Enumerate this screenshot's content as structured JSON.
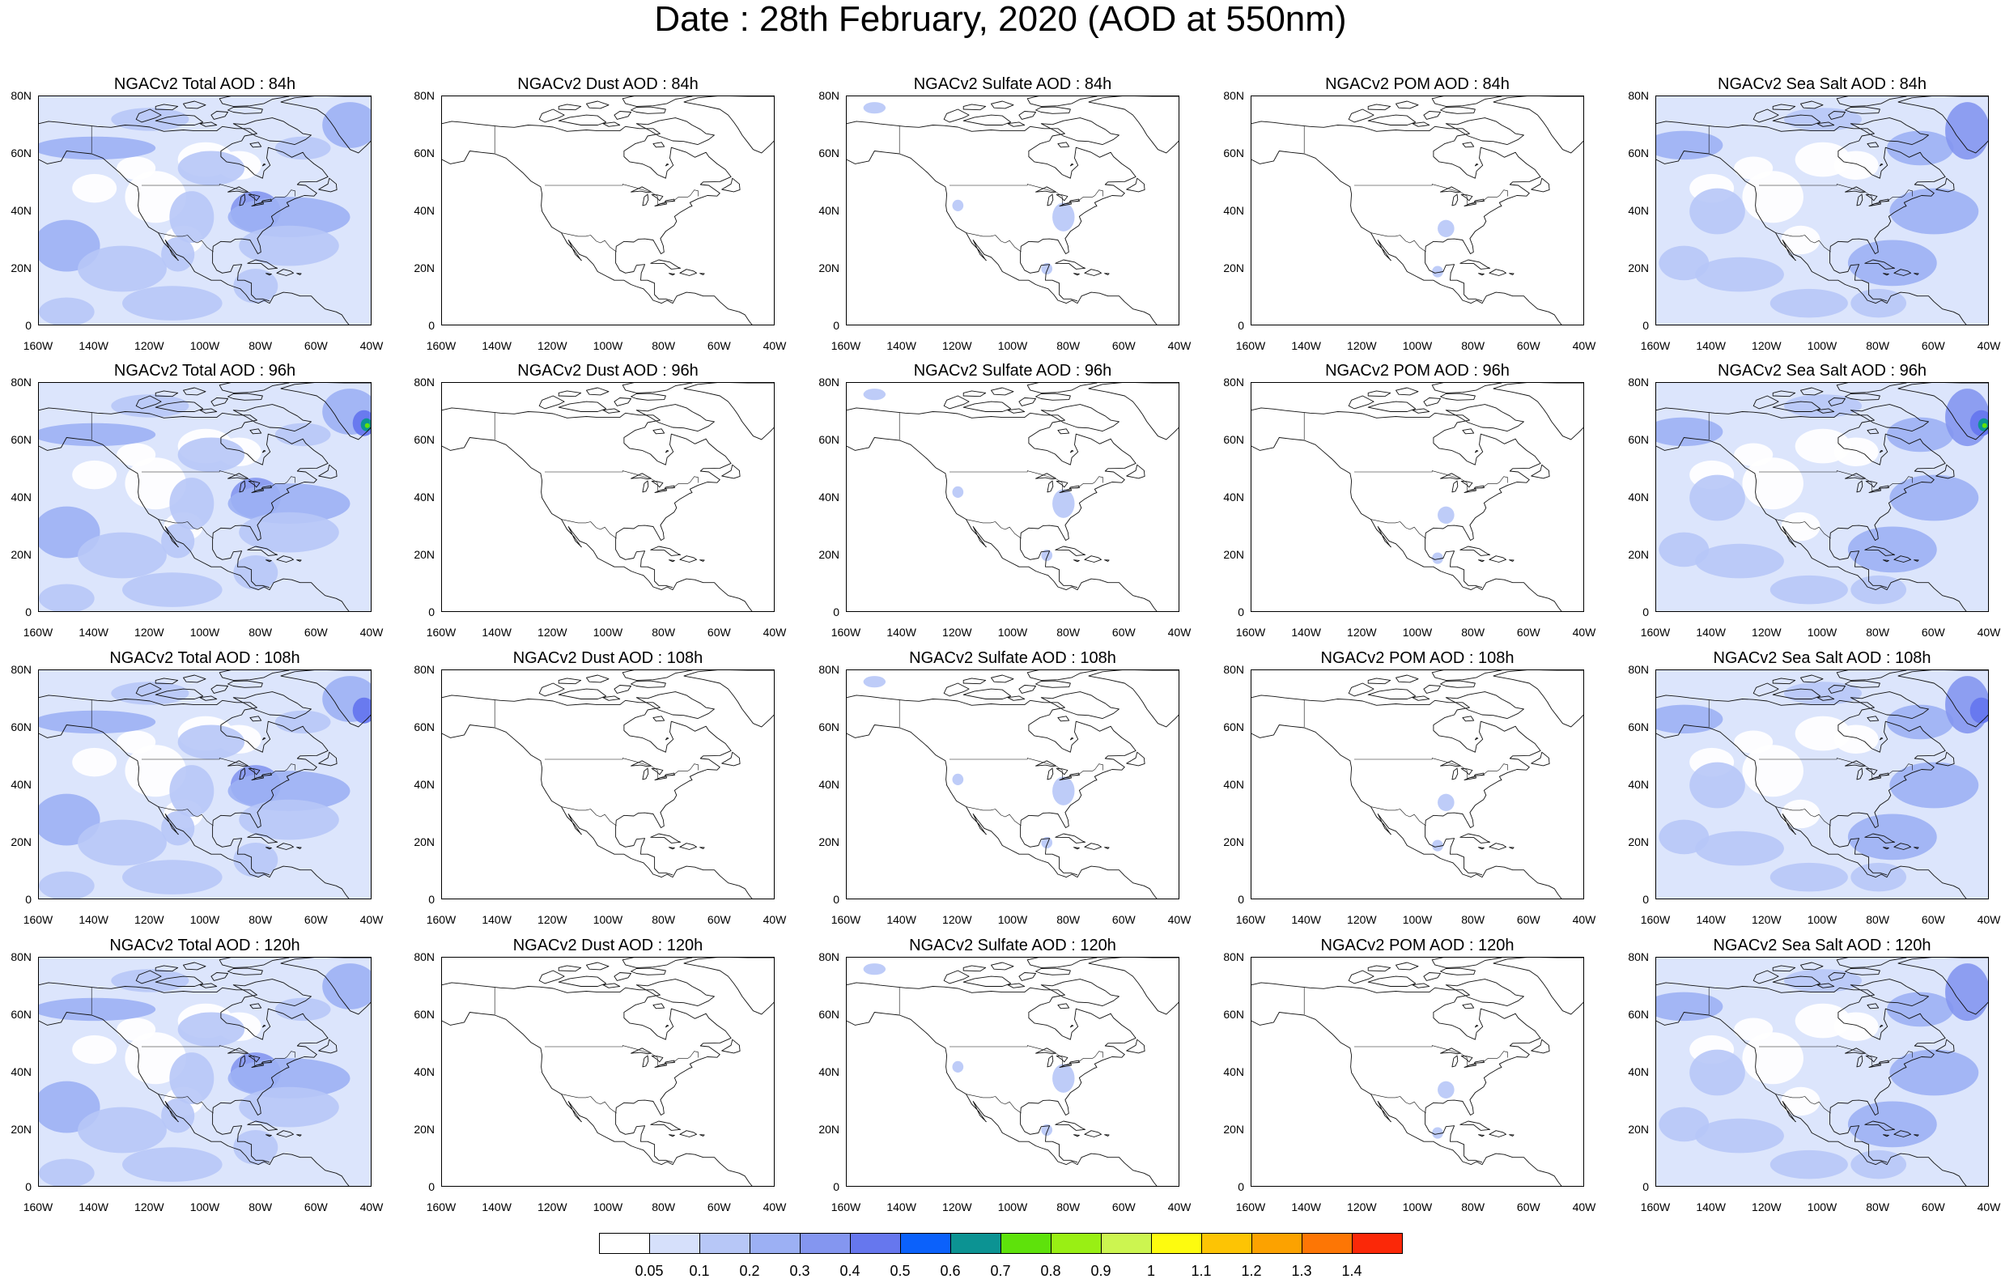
{
  "title": "Date : 28th February, 2020 (AOD at 550nm)",
  "lat_ticks": [
    "80N",
    "60N",
    "40N",
    "20N",
    "0"
  ],
  "lon_ticks": [
    "160W",
    "140W",
    "120W",
    "100W",
    "80W",
    "60W",
    "40W"
  ],
  "map_extent": {
    "lon": [
      -160,
      -40
    ],
    "lat": [
      0,
      80
    ]
  },
  "panels": [
    [
      {
        "title": "NGACv2 Total AOD : 84h",
        "species": "total",
        "level": 0.22
      },
      {
        "title": "NGACv2 Dust AOD : 84h",
        "species": "dust",
        "level": 0.0
      },
      {
        "title": "NGACv2 Sulfate AOD : 84h",
        "species": "sulfate",
        "level": 0.04
      },
      {
        "title": "NGACv2 POM AOD : 84h",
        "species": "pom",
        "level": 0.03
      },
      {
        "title": "NGACv2 Sea Salt AOD : 84h",
        "species": "seasalt",
        "level": 0.18
      }
    ],
    [
      {
        "title": "NGACv2 Total AOD : 96h",
        "species": "total",
        "level": 0.26
      },
      {
        "title": "NGACv2 Dust AOD : 96h",
        "species": "dust",
        "level": 0.0
      },
      {
        "title": "NGACv2 Sulfate AOD : 96h",
        "species": "sulfate",
        "level": 0.05
      },
      {
        "title": "NGACv2 POM AOD : 96h",
        "species": "pom",
        "level": 0.02
      },
      {
        "title": "NGACv2 Sea Salt AOD : 96h",
        "species": "seasalt",
        "level": 0.2
      }
    ],
    [
      {
        "title": "NGACv2 Total AOD : 108h",
        "species": "total",
        "level": 0.26
      },
      {
        "title": "NGACv2 Dust AOD : 108h",
        "species": "dust",
        "level": 0.0
      },
      {
        "title": "NGACv2 Sulfate AOD : 108h",
        "species": "sulfate",
        "level": 0.06
      },
      {
        "title": "NGACv2 POM AOD : 108h",
        "species": "pom",
        "level": 0.03
      },
      {
        "title": "NGACv2 Sea Salt AOD : 108h",
        "species": "seasalt",
        "level": 0.22
      }
    ],
    [
      {
        "title": "NGACv2 Total AOD : 120h",
        "species": "total",
        "level": 0.24
      },
      {
        "title": "NGACv2 Dust AOD : 120h",
        "species": "dust",
        "level": 0.0
      },
      {
        "title": "NGACv2 Sulfate AOD : 120h",
        "species": "sulfate",
        "level": 0.06
      },
      {
        "title": "NGACv2 POM AOD : 120h",
        "species": "pom",
        "level": 0.03
      },
      {
        "title": "NGACv2 Sea Salt  AOD : 120h",
        "species": "seasalt",
        "level": 0.2
      }
    ]
  ],
  "colorbar": {
    "labels": [
      "0.05",
      "0.1",
      "0.2",
      "0.3",
      "0.4",
      "0.5",
      "0.6",
      "0.7",
      "0.8",
      "0.9",
      "1",
      "1.1",
      "1.2",
      "1.3",
      "1.4"
    ],
    "colors": [
      "#ffffff",
      "#d6e0fb",
      "#b7c7f7",
      "#9cb0f4",
      "#8496f0",
      "#6677ee",
      "#0b61fb",
      "#0c9393",
      "#5ee20b",
      "#99ef14",
      "#ccf550",
      "#fdfb0f",
      "#fdc404",
      "#fca200",
      "#fd7605",
      "#fb2808"
    ]
  }
}
